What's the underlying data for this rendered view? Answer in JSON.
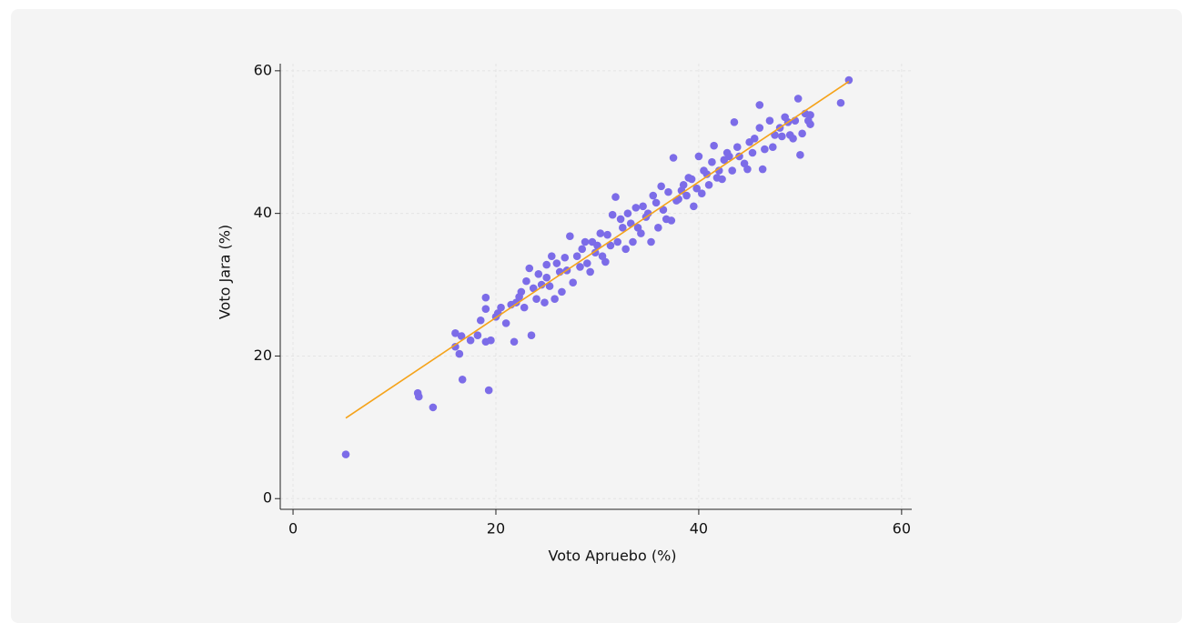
{
  "chart_data": {
    "type": "scatter",
    "x_label": "Voto Apruebo (%)",
    "y_label": "Voto Jara (%)",
    "x": [
      5.2,
      12.3,
      12.4,
      13.8,
      16.7,
      19.3,
      16.4,
      16.0,
      16.0,
      16.6,
      17.5,
      18.2,
      19.0,
      19.5,
      18.5,
      19.0,
      19.0,
      20.0,
      20.5,
      21.0,
      21.8,
      23.5,
      22.0,
      22.5,
      23.0,
      23.3,
      24.0,
      24.5,
      25.0,
      25.5,
      26.0,
      26.5,
      27.0,
      27.3,
      28.0,
      28.5,
      29.0,
      29.5,
      30.0,
      30.5,
      31.0,
      31.5,
      31.8,
      32.0,
      32.5,
      33.0,
      33.5,
      34.0,
      34.5,
      35.0,
      35.5,
      36.0,
      36.5,
      37.0,
      37.5,
      38.0,
      38.5,
      39.0,
      39.5,
      40.0,
      40.5,
      41.0,
      41.5,
      42.0,
      42.5,
      43.0,
      43.5,
      44.0,
      44.5,
      45.0,
      45.5,
      46.0,
      46.0,
      46.5,
      47.0,
      47.5,
      48.0,
      48.5,
      49.0,
      49.5,
      49.8,
      50.0,
      50.5,
      51.0,
      51.0,
      54.0,
      54.8,
      20.2,
      21.5,
      22.3,
      22.8,
      23.7,
      24.2,
      24.8,
      25.3,
      25.8,
      26.3,
      26.8,
      27.6,
      28.3,
      28.8,
      29.3,
      29.8,
      30.3,
      30.8,
      31.3,
      32.3,
      32.8,
      33.3,
      33.8,
      34.3,
      34.8,
      35.3,
      35.8,
      36.3,
      36.8,
      37.3,
      37.8,
      38.3,
      38.8,
      39.3,
      39.8,
      40.3,
      40.8,
      41.3,
      41.8,
      42.3,
      42.8,
      43.3,
      43.8,
      44.8,
      45.3,
      46.3,
      47.3,
      48.2,
      48.8,
      49.3,
      50.2,
      50.8,
      25.0
    ],
    "values": [
      6.2,
      14.8,
      14.3,
      12.8,
      16.7,
      15.2,
      20.3,
      21.3,
      23.2,
      22.8,
      22.2,
      22.9,
      22.0,
      22.2,
      25.0,
      28.2,
      26.6,
      25.5,
      26.8,
      24.6,
      22.0,
      22.9,
      27.5,
      29.0,
      30.5,
      32.3,
      28.0,
      30.0,
      31.0,
      34.0,
      33.0,
      29.0,
      32.0,
      36.8,
      34.0,
      35.0,
      33.0,
      36.0,
      35.5,
      34.0,
      37.0,
      39.8,
      42.3,
      36.0,
      38.0,
      40.0,
      36.0,
      38.0,
      41.0,
      40.0,
      42.5,
      38.0,
      40.5,
      43.0,
      47.8,
      42.0,
      44.0,
      45.0,
      41.0,
      48.0,
      46.0,
      44.0,
      49.5,
      46.0,
      47.5,
      48.0,
      52.8,
      48.0,
      47.0,
      50.0,
      50.5,
      55.2,
      52.0,
      49.0,
      53.0,
      51.0,
      52.0,
      53.5,
      51.0,
      53.0,
      56.1,
      48.2,
      54.0,
      52.5,
      53.8,
      55.5,
      58.7,
      26.0,
      27.2,
      28.3,
      26.8,
      29.5,
      31.5,
      27.5,
      29.8,
      28.0,
      31.8,
      33.8,
      30.3,
      32.5,
      36.0,
      31.8,
      34.5,
      37.2,
      33.2,
      35.5,
      39.2,
      35.0,
      38.6,
      40.8,
      37.2,
      39.5,
      36.0,
      41.5,
      43.8,
      39.2,
      39.0,
      41.8,
      43.2,
      42.5,
      44.8,
      43.5,
      42.8,
      45.5,
      47.2,
      45.0,
      44.8,
      48.5,
      46.0,
      49.3,
      46.2,
      48.5,
      46.2,
      49.3,
      50.8,
      52.8,
      50.5,
      51.2,
      53.0,
      32.8
    ],
    "color": "#7c6ce8",
    "fit_line": {
      "x": [
        5.2,
        54.8
      ],
      "values": [
        11.3,
        58.5
      ],
      "color": "#f5a31a"
    },
    "xlim": [
      -1.26,
      61
    ],
    "ylim": [
      -1.5,
      61
    ],
    "xticks": [
      0,
      20,
      40,
      60
    ],
    "yticks": [
      0,
      20,
      40,
      60
    ],
    "grid": true
  }
}
